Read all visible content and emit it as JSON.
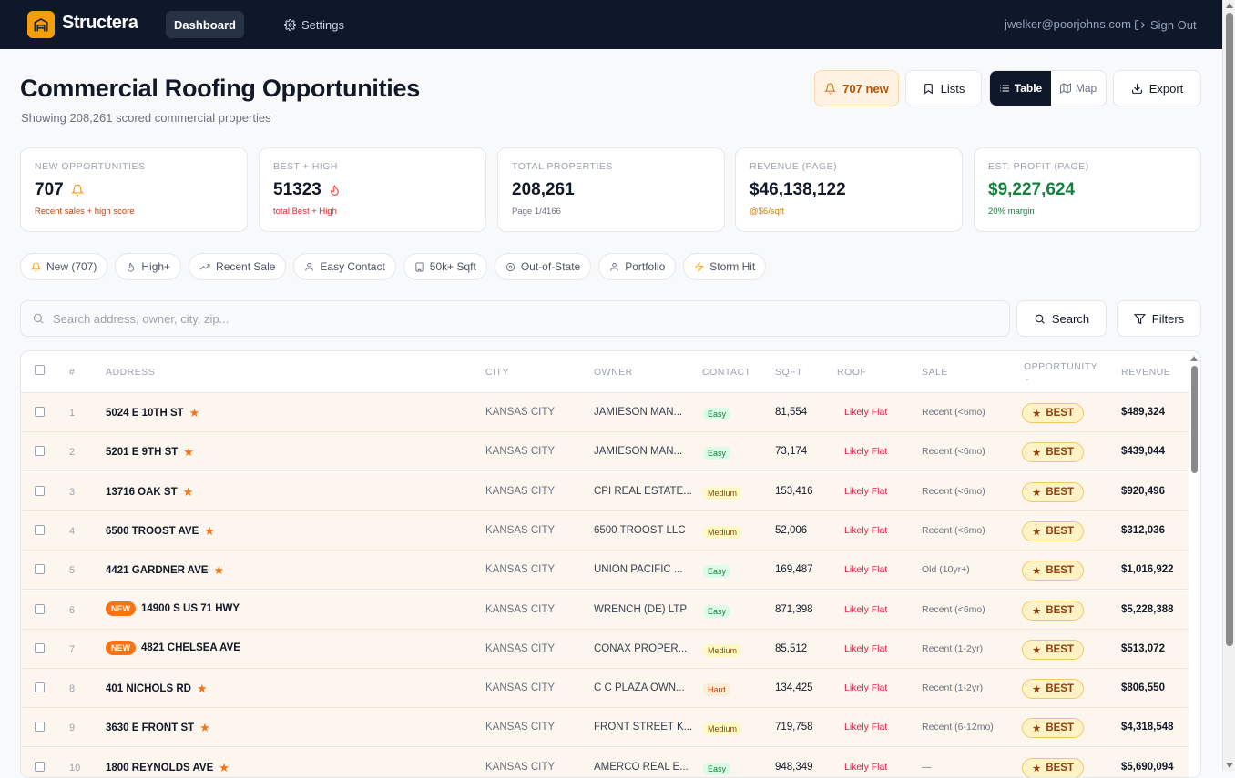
{
  "header": {
    "brand": "Structera",
    "nav": {
      "dashboard": "Dashboard",
      "settings": "Settings"
    },
    "user_email": "jwelker@poorjohns.com",
    "sign_out": "Sign Out"
  },
  "page": {
    "title": "Commercial Roofing Opportunities",
    "subtitle": "Showing 208,261 scored commercial properties"
  },
  "toolbar": {
    "new_label": "707 new",
    "lists_label": "Lists",
    "view_table": "Table",
    "view_map": "Map",
    "export_label": "Export"
  },
  "cards": [
    {
      "label": "NEW OPPORTUNITIES",
      "value": "707",
      "note": "Recent sales + high score",
      "note_color": "#c2410c",
      "icon": "bell-icon"
    },
    {
      "label": "BEST + HIGH",
      "value": "51323",
      "note": "total Best + High",
      "note_color": "#dc2626",
      "icon": "flame-icon"
    },
    {
      "label": "TOTAL PROPERTIES",
      "value": "208,261",
      "note": "Page 1/4166",
      "note_color": "#6b7280"
    },
    {
      "label": "REVENUE (PAGE)",
      "value": "$46,138,122",
      "note": "@$6/sqft",
      "note_color": "#d97706"
    },
    {
      "label": "EST. PROFIT (PAGE)",
      "value": "$9,227,624",
      "note": "20% margin",
      "note_color": "#15803d",
      "value_color": "#15803d"
    }
  ],
  "chips": [
    {
      "label": "New (707)",
      "icon": "bell-icon"
    },
    {
      "label": "High+",
      "icon": "flame-icon"
    },
    {
      "label": "Recent Sale",
      "icon": "trending-up-icon"
    },
    {
      "label": "Easy Contact",
      "icon": "user-icon"
    },
    {
      "label": "50k+ Sqft",
      "icon": "building-icon"
    },
    {
      "label": "Out-of-State",
      "icon": "map-pin-icon"
    },
    {
      "label": "Portfolio",
      "icon": "user-icon"
    },
    {
      "label": "Storm Hit",
      "icon": "lightning-icon"
    }
  ],
  "search": {
    "placeholder": "Search address, owner, city, zip...",
    "value": "",
    "search_label": "Search",
    "filters_label": "Filters"
  },
  "table": {
    "columns": [
      "#",
      "ADDRESS",
      "CITY",
      "OWNER",
      "CONTACT",
      "SQFT",
      "ROOF",
      "SALE",
      "OPPORTUNITY",
      "REVENUE"
    ],
    "rows": [
      {
        "n": "1",
        "address": "5024 E 10TH ST",
        "tag": "star",
        "city": "KANSAS CITY",
        "owner": "JAMIESON MAN...",
        "contact": "Easy",
        "sqft": "81,554",
        "roof": "Likely Flat",
        "sale": "Recent (<6mo)",
        "opportunity": "BEST",
        "revenue": "$489,324"
      },
      {
        "n": "2",
        "address": "5201 E 9TH ST",
        "tag": "star",
        "city": "KANSAS CITY",
        "owner": "JAMIESON MAN...",
        "contact": "Easy",
        "sqft": "73,174",
        "roof": "Likely Flat",
        "sale": "Recent (<6mo)",
        "opportunity": "BEST",
        "revenue": "$439,044"
      },
      {
        "n": "3",
        "address": "13716 OAK ST",
        "tag": "star",
        "city": "KANSAS CITY",
        "owner": "CPI REAL ESTATE...",
        "contact": "Medium",
        "sqft": "153,416",
        "roof": "Likely Flat",
        "sale": "Recent (<6mo)",
        "opportunity": "BEST",
        "revenue": "$920,496"
      },
      {
        "n": "4",
        "address": "6500 TROOST AVE",
        "tag": "star",
        "city": "KANSAS CITY",
        "owner": "6500 TROOST LLC",
        "contact": "Medium",
        "sqft": "52,006",
        "roof": "Likely Flat",
        "sale": "Recent (<6mo)",
        "opportunity": "BEST",
        "revenue": "$312,036"
      },
      {
        "n": "5",
        "address": "4421 GARDNER AVE",
        "tag": "star",
        "city": "KANSAS CITY",
        "owner": "UNION PACIFIC ...",
        "contact": "Easy",
        "sqft": "169,487",
        "roof": "Likely Flat",
        "sale": "Old (10yr+)",
        "opportunity": "BEST",
        "revenue": "$1,016,922"
      },
      {
        "n": "6",
        "address": "14900 S US 71 HWY",
        "tag": "NEW",
        "city": "KANSAS CITY",
        "owner": "WRENCH (DE) LTP",
        "contact": "Easy",
        "sqft": "871,398",
        "roof": "Likely Flat",
        "sale": "Recent (<6mo)",
        "opportunity": "BEST",
        "revenue": "$5,228,388"
      },
      {
        "n": "7",
        "address": "4821 CHELSEA AVE",
        "tag": "NEW",
        "city": "KANSAS CITY",
        "owner": "CONAX PROPER...",
        "contact": "Medium",
        "sqft": "85,512",
        "roof": "Likely Flat",
        "sale": "Recent (1-2yr)",
        "opportunity": "BEST",
        "revenue": "$513,072"
      },
      {
        "n": "8",
        "address": "401 NICHOLS RD",
        "tag": "star",
        "city": "KANSAS CITY",
        "owner": "C C PLAZA OWN...",
        "contact": "Hard",
        "sqft": "134,425",
        "roof": "Likely Flat",
        "sale": "Recent (1-2yr)",
        "opportunity": "BEST",
        "revenue": "$806,550"
      },
      {
        "n": "9",
        "address": "3630 E FRONT ST",
        "tag": "star",
        "city": "KANSAS CITY",
        "owner": "FRONT STREET K...",
        "contact": "Medium",
        "sqft": "719,758",
        "roof": "Likely Flat",
        "sale": "Recent (6-12mo)",
        "opportunity": "BEST",
        "revenue": "$4,318,548"
      },
      {
        "n": "10",
        "address": "1800 REYNOLDS AVE",
        "tag": "star",
        "city": "KANSAS CITY",
        "owner": "AMERCO REAL E...",
        "contact": "Easy",
        "sqft": "948,349",
        "roof": "Likely Flat",
        "sale": "—",
        "opportunity": "BEST",
        "revenue": "$5,690,094"
      }
    ]
  },
  "colors": {
    "topbar": "#0f172a",
    "brand_accent": "#f59e0b",
    "row_highlight": "#fdf6ee",
    "profit_green": "#15803d"
  }
}
